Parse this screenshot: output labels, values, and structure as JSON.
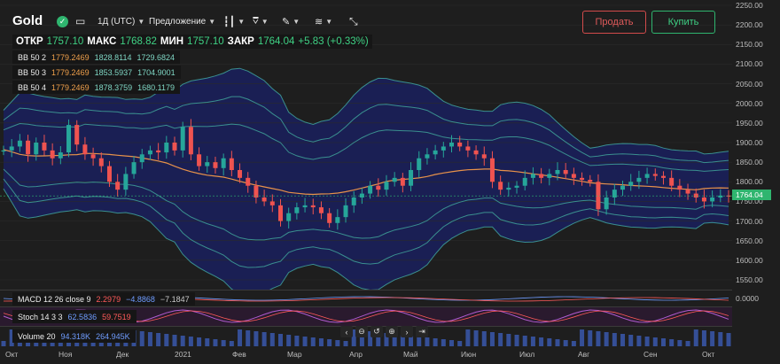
{
  "header": {
    "title": "Gold",
    "timeframe_label": "1Д (UTC)",
    "price_side_label": "Предложение",
    "sell_label": "Продать",
    "buy_label": "Купить"
  },
  "ohlc": {
    "open_label": "ОТКР",
    "open": "1757.10",
    "high_label": "МАКС",
    "high": "1768.82",
    "low_label": "МИН",
    "low": "1757.10",
    "close_label": "ЗАКР",
    "close": "1764.04",
    "change": "+5.83 (+0.33%)"
  },
  "indicators": [
    {
      "name": "BB 50 2",
      "v1": "1779.2469",
      "v2": "1828.8114",
      "v3": "1729.6824"
    },
    {
      "name": "BB 50 3",
      "v1": "1779.2469",
      "v2": "1853.5937",
      "v3": "1704.9001"
    },
    {
      "name": "BB 50 4",
      "v1": "1779.2469",
      "v2": "1878.3759",
      "v3": "1680.1179"
    }
  ],
  "macd": {
    "name": "MACD 12 26 close 9",
    "v1": "2.2979",
    "v2": "−4.8868",
    "v3": "−7.1847",
    "axis_value": "0.0000"
  },
  "stoch": {
    "name": "Stoch 14 3 3",
    "v1": "62.5836",
    "v2": "59.7519"
  },
  "volume": {
    "name": "Volume 20",
    "v1": "94.318K",
    "v2": "264.945K"
  },
  "last_price": "1764.04",
  "price_axis": [
    "2250.00",
    "2200.00",
    "2150.00",
    "2100.00",
    "2050.00",
    "2000.00",
    "1950.00",
    "1900.00",
    "1850.00",
    "1800.00",
    "1750.00",
    "1700.00",
    "1650.00",
    "1600.00",
    "1550.00"
  ],
  "time_axis": [
    "Окт",
    "Ноя",
    "Дек",
    "2021",
    "Фев",
    "Мар",
    "Апр",
    "Май",
    "Июн",
    "Июл",
    "Авг",
    "Сен",
    "Окт"
  ],
  "colors": {
    "up": "#26a69a",
    "down": "#ef5350",
    "band_fill": "#1a1f5a",
    "sma": "#e8924a",
    "band_line": "#3a8f8f",
    "buy": "#2fb56f",
    "sell": "#d24b4b"
  },
  "chart_data": {
    "type": "candlestick",
    "symbol": "Gold",
    "ylim": [
      1550,
      2250
    ],
    "x_ticks": [
      "Окт",
      "Ноя",
      "Дек",
      "2021",
      "Фев",
      "Мар",
      "Апр",
      "Май",
      "Июн",
      "Июл",
      "Авг",
      "Сен",
      "Окт"
    ],
    "close_path": [
      1880,
      1890,
      1905,
      1870,
      1900,
      1880,
      1860,
      1875,
      1945,
      1895,
      1870,
      1860,
      1840,
      1800,
      1780,
      1820,
      1850,
      1870,
      1880,
      1875,
      1900,
      1880,
      1940,
      1870,
      1840,
      1850,
      1835,
      1860,
      1830,
      1810,
      1790,
      1760,
      1750,
      1740,
      1700,
      1720,
      1735,
      1740,
      1735,
      1720,
      1695,
      1710,
      1740,
      1760,
      1770,
      1790,
      1780,
      1800,
      1810,
      1790,
      1830,
      1860,
      1870,
      1880,
      1890,
      1900,
      1890,
      1880,
      1870,
      1860,
      1800,
      1780,
      1785,
      1790,
      1810,
      1820,
      1810,
      1820,
      1830,
      1820,
      1810,
      1805,
      1800,
      1730,
      1760,
      1780,
      1790,
      1800,
      1810,
      1820,
      1815,
      1810,
      1790,
      1780,
      1770,
      1760,
      1750,
      1760,
      1765,
      1764
    ],
    "series": [
      {
        "name": "BB 50 2",
        "values": [
          1779.2469,
          1828.8114,
          1729.6824
        ]
      },
      {
        "name": "BB 50 3",
        "values": [
          1779.2469,
          1853.5937,
          1704.9001
        ]
      },
      {
        "name": "BB 50 4",
        "values": [
          1779.2469,
          1878.3759,
          1680.1179
        ]
      }
    ]
  }
}
